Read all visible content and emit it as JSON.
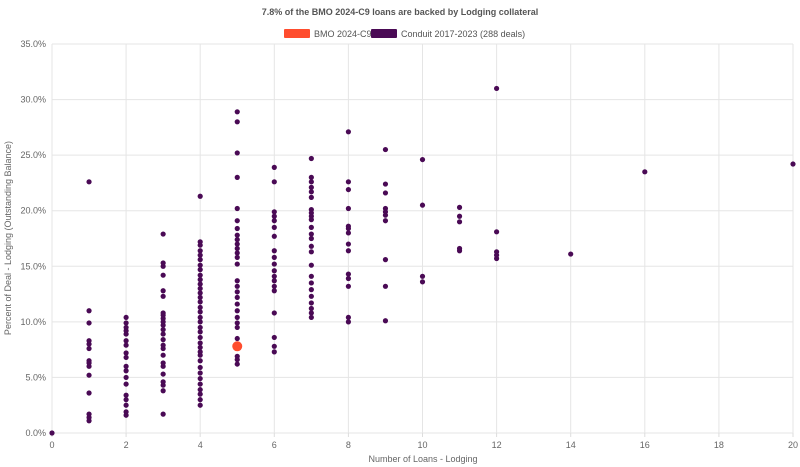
{
  "chart_data": {
    "type": "scatter",
    "title": "7.8% of the BMO 2024-C9 loans are backed by Lodging collateral",
    "xlabel": "Number of Loans - Lodging",
    "ylabel": "Percent of Deal - Lodging (Outstanding Balance)",
    "xlim": [
      0,
      20
    ],
    "ylim": [
      0,
      35
    ],
    "x_ticks": [
      "0",
      "2",
      "4",
      "6",
      "8",
      "10",
      "12",
      "14",
      "16",
      "18",
      "20"
    ],
    "y_ticks": [
      "0.0%",
      "5.0%",
      "10.0%",
      "15.0%",
      "20.0%",
      "25.0%",
      "30.0%",
      "35.0%"
    ],
    "grid": true,
    "legend_position": "top",
    "series": [
      {
        "name": "BMO 2024-C9",
        "color": "#ff4d2e",
        "points": [
          [
            5,
            7.8
          ]
        ]
      },
      {
        "name": "Conduit 2017-2023 (288 deals)",
        "color": "#4a0a55",
        "points": [
          [
            0,
            0.0
          ],
          [
            1,
            1.1
          ],
          [
            1,
            1.4
          ],
          [
            1,
            1.7
          ],
          [
            1,
            3.6
          ],
          [
            1,
            5.2
          ],
          [
            1,
            6.0
          ],
          [
            1,
            6.3
          ],
          [
            1,
            6.5
          ],
          [
            1,
            7.6
          ],
          [
            1,
            8.0
          ],
          [
            1,
            8.3
          ],
          [
            1,
            9.9
          ],
          [
            1,
            11.0
          ],
          [
            1,
            22.6
          ],
          [
            2,
            1.6
          ],
          [
            2,
            1.9
          ],
          [
            2,
            2.5
          ],
          [
            2,
            3.0
          ],
          [
            2,
            3.4
          ],
          [
            2,
            4.4
          ],
          [
            2,
            5.0
          ],
          [
            2,
            5.6
          ],
          [
            2,
            6.0
          ],
          [
            2,
            6.8
          ],
          [
            2,
            7.2
          ],
          [
            2,
            7.9
          ],
          [
            2,
            8.3
          ],
          [
            2,
            8.9
          ],
          [
            2,
            9.2
          ],
          [
            2,
            9.5
          ],
          [
            2,
            9.9
          ],
          [
            2,
            10.4
          ],
          [
            3,
            1.7
          ],
          [
            3,
            3.8
          ],
          [
            3,
            4.3
          ],
          [
            3,
            4.6
          ],
          [
            3,
            5.3
          ],
          [
            3,
            6.0
          ],
          [
            3,
            6.3
          ],
          [
            3,
            7.0
          ],
          [
            3,
            7.6
          ],
          [
            3,
            7.9
          ],
          [
            3,
            8.4
          ],
          [
            3,
            8.9
          ],
          [
            3,
            9.3
          ],
          [
            3,
            9.7
          ],
          [
            3,
            10.0
          ],
          [
            3,
            10.3
          ],
          [
            3,
            10.6
          ],
          [
            3,
            10.8
          ],
          [
            3,
            12.3
          ],
          [
            3,
            12.8
          ],
          [
            3,
            14.2
          ],
          [
            3,
            15.0
          ],
          [
            3,
            15.3
          ],
          [
            3,
            17.9
          ],
          [
            4,
            2.5
          ],
          [
            4,
            3.0
          ],
          [
            4,
            3.5
          ],
          [
            4,
            3.9
          ],
          [
            4,
            4.4
          ],
          [
            4,
            4.9
          ],
          [
            4,
            5.4
          ],
          [
            4,
            5.9
          ],
          [
            4,
            6.5
          ],
          [
            4,
            7.0
          ],
          [
            4,
            7.3
          ],
          [
            4,
            7.7
          ],
          [
            4,
            8.1
          ],
          [
            4,
            8.6
          ],
          [
            4,
            9.1
          ],
          [
            4,
            9.5
          ],
          [
            4,
            10.0
          ],
          [
            4,
            10.4
          ],
          [
            4,
            10.9
          ],
          [
            4,
            11.3
          ],
          [
            4,
            11.8
          ],
          [
            4,
            12.2
          ],
          [
            4,
            12.6
          ],
          [
            4,
            13.0
          ],
          [
            4,
            13.4
          ],
          [
            4,
            13.8
          ],
          [
            4,
            14.2
          ],
          [
            4,
            14.7
          ],
          [
            4,
            15.1
          ],
          [
            4,
            15.6
          ],
          [
            4,
            16.0
          ],
          [
            4,
            16.4
          ],
          [
            4,
            16.9
          ],
          [
            4,
            17.2
          ],
          [
            4,
            21.3
          ],
          [
            5,
            6.2
          ],
          [
            5,
            6.6
          ],
          [
            5,
            6.9
          ],
          [
            5,
            7.9
          ],
          [
            5,
            8.5
          ],
          [
            5,
            9.5
          ],
          [
            5,
            9.9
          ],
          [
            5,
            10.4
          ],
          [
            5,
            11.0
          ],
          [
            5,
            11.6
          ],
          [
            5,
            12.2
          ],
          [
            5,
            12.7
          ],
          [
            5,
            13.2
          ],
          [
            5,
            13.7
          ],
          [
            5,
            15.2
          ],
          [
            5,
            15.8
          ],
          [
            5,
            16.2
          ],
          [
            5,
            16.6
          ],
          [
            5,
            17.0
          ],
          [
            5,
            17.4
          ],
          [
            5,
            17.8
          ],
          [
            5,
            18.4
          ],
          [
            5,
            19.1
          ],
          [
            5,
            20.2
          ],
          [
            5,
            23.0
          ],
          [
            5,
            25.2
          ],
          [
            5,
            28.0
          ],
          [
            5,
            28.9
          ],
          [
            6,
            7.3
          ],
          [
            6,
            7.8
          ],
          [
            6,
            8.6
          ],
          [
            6,
            10.8
          ],
          [
            6,
            12.8
          ],
          [
            6,
            13.2
          ],
          [
            6,
            13.7
          ],
          [
            6,
            14.1
          ],
          [
            6,
            14.6
          ],
          [
            6,
            15.2
          ],
          [
            6,
            15.8
          ],
          [
            6,
            16.4
          ],
          [
            6,
            17.7
          ],
          [
            6,
            18.5
          ],
          [
            6,
            19.1
          ],
          [
            6,
            19.5
          ],
          [
            6,
            19.9
          ],
          [
            6,
            22.6
          ],
          [
            6,
            23.9
          ],
          [
            7,
            10.4
          ],
          [
            7,
            10.8
          ],
          [
            7,
            11.2
          ],
          [
            7,
            11.7
          ],
          [
            7,
            12.3
          ],
          [
            7,
            12.9
          ],
          [
            7,
            13.5
          ],
          [
            7,
            14.1
          ],
          [
            7,
            15.1
          ],
          [
            7,
            16.3
          ],
          [
            7,
            16.8
          ],
          [
            7,
            17.5
          ],
          [
            7,
            17.9
          ],
          [
            7,
            18.5
          ],
          [
            7,
            19.2
          ],
          [
            7,
            19.5
          ],
          [
            7,
            19.8
          ],
          [
            7,
            20.1
          ],
          [
            7,
            21.2
          ],
          [
            7,
            21.7
          ],
          [
            7,
            22.1
          ],
          [
            7,
            22.6
          ],
          [
            7,
            23.0
          ],
          [
            7,
            24.7
          ],
          [
            8,
            10.0
          ],
          [
            8,
            10.4
          ],
          [
            8,
            13.2
          ],
          [
            8,
            13.9
          ],
          [
            8,
            14.3
          ],
          [
            8,
            16.4
          ],
          [
            8,
            17.0
          ],
          [
            8,
            18.0
          ],
          [
            8,
            18.4
          ],
          [
            8,
            18.6
          ],
          [
            8,
            20.2
          ],
          [
            8,
            21.9
          ],
          [
            8,
            22.6
          ],
          [
            8,
            27.1
          ],
          [
            9,
            10.1
          ],
          [
            9,
            13.2
          ],
          [
            9,
            15.6
          ],
          [
            9,
            19.1
          ],
          [
            9,
            19.6
          ],
          [
            9,
            19.9
          ],
          [
            9,
            20.2
          ],
          [
            9,
            21.6
          ],
          [
            9,
            22.4
          ],
          [
            9,
            25.5
          ],
          [
            10,
            13.6
          ],
          [
            10,
            14.1
          ],
          [
            10,
            20.5
          ],
          [
            10,
            24.6
          ],
          [
            11,
            16.4
          ],
          [
            11,
            16.6
          ],
          [
            11,
            19.0
          ],
          [
            11,
            19.5
          ],
          [
            11,
            20.3
          ],
          [
            12,
            15.7
          ],
          [
            12,
            16.0
          ],
          [
            12,
            16.3
          ],
          [
            12,
            18.1
          ],
          [
            12,
            31.0
          ],
          [
            14,
            16.1
          ],
          [
            16,
            23.5
          ],
          [
            20,
            24.2
          ]
        ]
      }
    ]
  }
}
